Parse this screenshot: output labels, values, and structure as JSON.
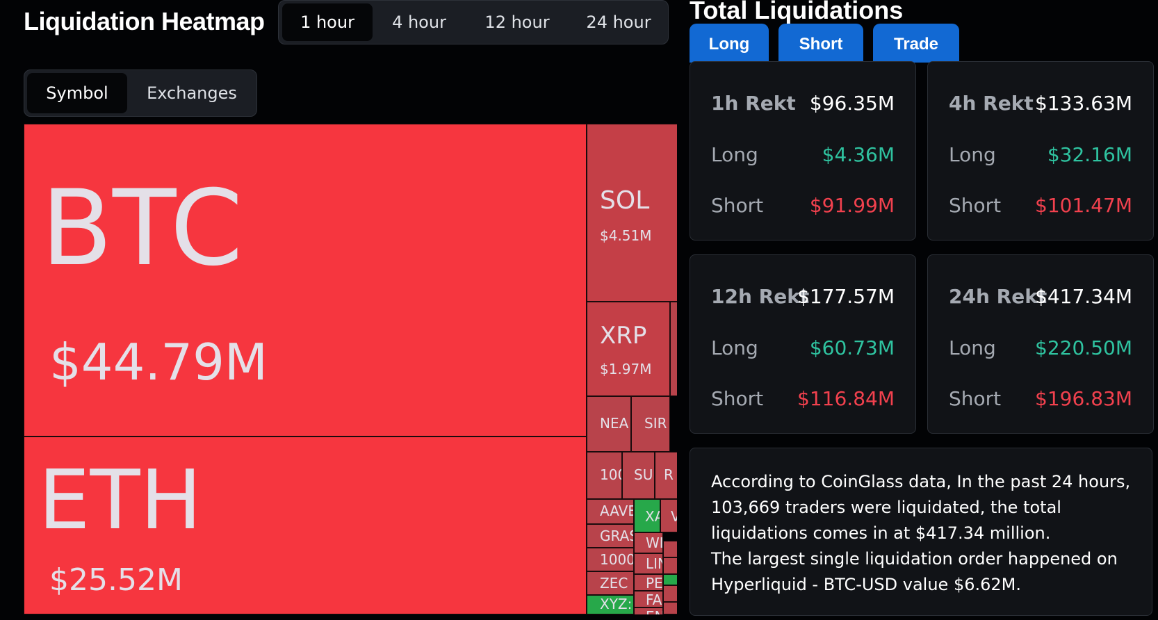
{
  "header": {
    "heatmap_title": "Liquidation Heatmap",
    "time_tabs": [
      "1 hour",
      "4 hour",
      "12 hour",
      "24 hour"
    ],
    "active_time_tab": "1 hour",
    "view_tabs": [
      "Symbol",
      "Exchanges"
    ],
    "active_view_tab": "Symbol"
  },
  "treemap": {
    "colors": {
      "long_heavy": "#f6363f",
      "mid": "#c43f47",
      "small": "#b8434b",
      "green": "#27a84a"
    },
    "cells": [
      {
        "symbol": "BTC",
        "value": "$44.79M",
        "tone": "long_heavy"
      },
      {
        "symbol": "ETH",
        "value": "$25.52M",
        "tone": "long_heavy"
      },
      {
        "symbol": "SOL",
        "value": "$4.51M",
        "tone": "mid"
      },
      {
        "symbol": "XRP",
        "value": "$1.97M",
        "tone": "mid"
      },
      {
        "symbol": "NEA",
        "value": "",
        "tone": "small"
      },
      {
        "symbol": "SIR",
        "value": "",
        "tone": "small"
      },
      {
        "symbol": "100",
        "value": "",
        "tone": "small"
      },
      {
        "symbol": "SU",
        "value": "",
        "tone": "small"
      },
      {
        "symbol": "R",
        "value": "",
        "tone": "small"
      },
      {
        "symbol": "AAVE",
        "value": "",
        "tone": "small"
      },
      {
        "symbol": "XA",
        "value": "",
        "tone": "green"
      },
      {
        "symbol": "V",
        "value": "",
        "tone": "small"
      },
      {
        "symbol": "GRAS",
        "value": "",
        "tone": "small"
      },
      {
        "symbol": "WI",
        "value": "",
        "tone": "small"
      },
      {
        "symbol": "1000",
        "value": "",
        "tone": "small"
      },
      {
        "symbol": "LIN",
        "value": "",
        "tone": "small"
      },
      {
        "symbol": "ZEC",
        "value": "",
        "tone": "small"
      },
      {
        "symbol": "PE",
        "value": "",
        "tone": "small"
      },
      {
        "symbol": "FA",
        "value": "",
        "tone": "small"
      },
      {
        "symbol": "XYZ:",
        "value": "",
        "tone": "green"
      },
      {
        "symbol": "EN",
        "value": "",
        "tone": "small"
      },
      {
        "symbol": "",
        "value": "",
        "tone": "small"
      },
      {
        "symbol": "",
        "value": "",
        "tone": "green"
      },
      {
        "symbol": "",
        "value": "",
        "tone": "small"
      },
      {
        "symbol": "",
        "value": "",
        "tone": "small"
      },
      {
        "symbol": "",
        "value": "",
        "tone": "small"
      },
      {
        "symbol": "",
        "value": "",
        "tone": "small"
      }
    ]
  },
  "total_liquidations": {
    "title": "Total Liquidations",
    "buttons": [
      "Long",
      "Short",
      "Trade"
    ],
    "cards": [
      {
        "label": "1h Rekt",
        "total": "$96.35M",
        "long_label": "Long",
        "long": "$4.36M",
        "short_label": "Short",
        "short": "$91.99M"
      },
      {
        "label": "4h Rekt",
        "total": "$133.63M",
        "long_label": "Long",
        "long": "$32.16M",
        "short_label": "Short",
        "short": "$101.47M"
      },
      {
        "label": "12h Rekt",
        "total": "$177.57M",
        "long_label": "Long",
        "long": "$60.73M",
        "short_label": "Short",
        "short": "$116.84M"
      },
      {
        "label": "24h Rekt",
        "total": "$417.34M",
        "long_label": "Long",
        "long": "$220.50M",
        "short_label": "Short",
        "short": "$196.83M"
      }
    ],
    "summary_line1": "According to CoinGlass data, In the past 24 hours, 103,669 traders were liquidated, the total liquidations comes in at $417.34 million.",
    "summary_line2": "The largest single liquidation order happened on Hyperliquid - BTC-USD value $6.62M."
  }
}
